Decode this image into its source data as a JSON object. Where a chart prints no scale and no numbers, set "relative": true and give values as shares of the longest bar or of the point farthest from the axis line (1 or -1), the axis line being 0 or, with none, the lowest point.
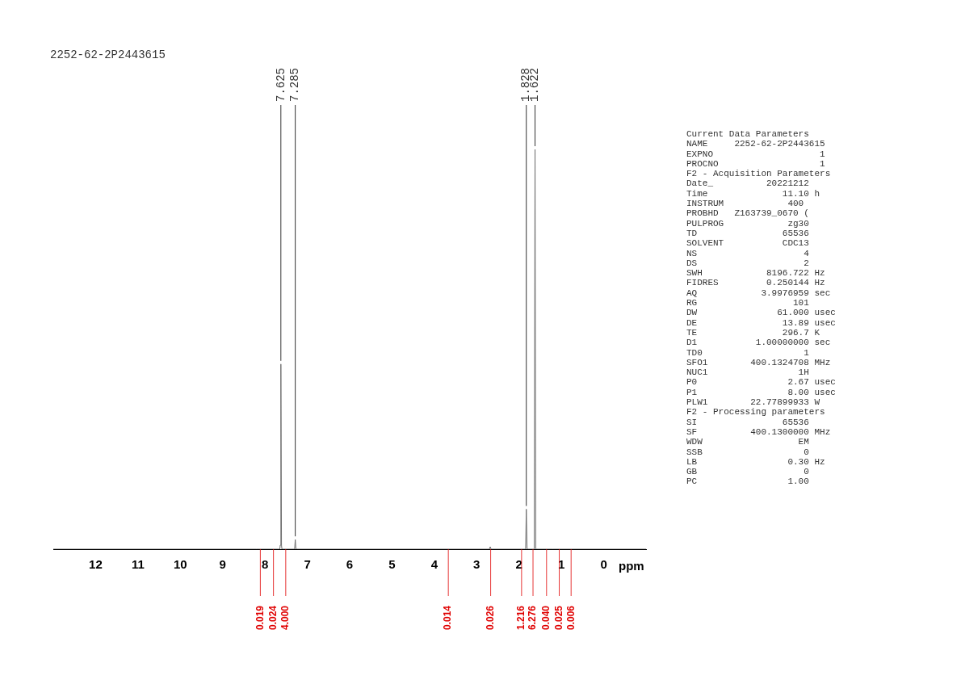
{
  "chart_data": {
    "type": "line",
    "title": "2252-62-2P2443615",
    "xlabel": "ppm",
    "relative": true,
    "x": [
      13,
      8.2,
      7.65,
      7.64,
      7.625,
      7.61,
      7.6,
      7.3,
      7.285,
      7.27,
      2.7,
      2.68,
      2.66,
      1.845,
      1.828,
      1.81,
      1.64,
      1.622,
      1.605,
      1.2,
      -1
    ],
    "series": [
      {
        "color": "#6e6e6e",
        "values": [
          0,
          0,
          0,
          0.01,
          0.463,
          0.01,
          0,
          0,
          0.024,
          0,
          0,
          0.006,
          0,
          0,
          0.1,
          0,
          0,
          1,
          0,
          0,
          0
        ]
      }
    ],
    "xlim": [
      13,
      -1
    ],
    "xticks": [
      12,
      11,
      10,
      9,
      8,
      7,
      6,
      5,
      4,
      3,
      2,
      1,
      0
    ],
    "grid": false,
    "legend": false,
    "marker": "none",
    "line_style": "solid",
    "annotations": [
      {
        "text": "7.625",
        "x": 7.625,
        "y": 0.463
      },
      {
        "text": "7.285",
        "x": 7.285,
        "y": 0.024
      },
      {
        "text": "1.828",
        "x": 1.828,
        "y": 0.1
      },
      {
        "text": "1.622",
        "x": 1.622,
        "y": 1
      },
      {
        "text": "0.019",
        "x": 8.11,
        "y": 0
      },
      {
        "text": "0.024",
        "x": 7.8,
        "y": 0
      },
      {
        "text": "4.000",
        "x": 7.51,
        "y": 0
      },
      {
        "text": "0.014",
        "x": 3.67,
        "y": 0
      },
      {
        "text": "0.026",
        "x": 2.67,
        "y": 0
      },
      {
        "text": "1.216",
        "x": 1.94,
        "y": 0
      },
      {
        "text": "6.276",
        "x": 1.67,
        "y": 0
      },
      {
        "text": "0.040",
        "x": 1.35,
        "y": 0
      },
      {
        "text": "0.025",
        "x": 1.05,
        "y": 0
      },
      {
        "text": "0.006",
        "x": 0.77,
        "y": 0
      },
      "Current Data Parameters",
      "NAME     2252-62-2P2443615",
      "EXPNO                    1",
      "PROCNO                   1",
      "F2 - Acquisition Parameters",
      "Date_          20221212",
      "Time              11.10 h",
      "INSTRUM            400",
      "PROBHD   Z163739_0670 (",
      "PULPROG            zg30",
      "TD                65536",
      "SOLVENT           CDC13",
      "NS                    4",
      "DS                    2",
      "SWH            8196.722 Hz",
      "FIDRES         0.250144 Hz",
      "AQ            3.9976959 sec",
      "RG                  101",
      "DW               61.000 usec",
      "DE                13.89 usec",
      "TE                296.7 K",
      "D1           1.00000000 sec",
      "TD0                   1",
      "SFO1        400.1324708 MHz",
      "NUC1                 1H",
      "P0                 2.67 usec",
      "P1                 8.00 usec",
      "PLW1        22.77899933 W",
      "F2 - Processing parameters",
      "SI                65536",
      "SF          400.1300000 MHz",
      "WDW                  EM",
      "SSB                   0",
      "LB                 0.30 Hz",
      "GB                    0",
      "PC                 1.00"
    ]
  }
}
